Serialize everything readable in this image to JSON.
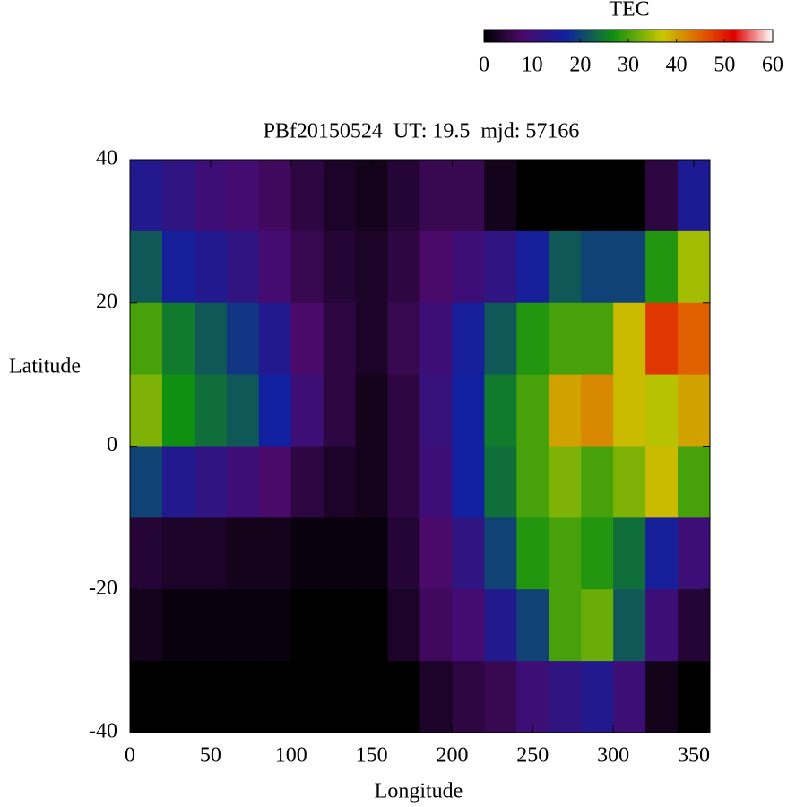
{
  "chart_data": {
    "type": "heatmap",
    "title": "PBf20150524  UT: 19.5  mjd: 57166",
    "x_label": "Longitude",
    "y_label": "Latitude",
    "colorbar_label": "TEC",
    "x": [
      10,
      30,
      50,
      70,
      90,
      110,
      130,
      150,
      170,
      190,
      210,
      230,
      250,
      270,
      290,
      310,
      330,
      350
    ],
    "y": [
      35,
      25,
      15,
      5,
      -5,
      -15,
      -25,
      -35
    ],
    "z": [
      [
        14,
        12,
        10,
        9,
        7,
        5,
        3,
        2,
        4,
        6,
        6,
        2,
        0,
        0,
        0,
        0,
        5,
        15
      ],
      [
        22,
        16,
        14,
        12,
        9,
        6,
        4,
        3,
        5,
        8,
        10,
        12,
        16,
        22,
        20,
        20,
        28,
        35
      ],
      [
        30,
        25,
        22,
        19,
        14,
        8,
        5,
        3,
        6,
        10,
        16,
        22,
        28,
        30,
        30,
        38,
        48,
        45
      ],
      [
        33,
        27,
        24,
        22,
        17,
        10,
        5,
        2,
        5,
        11,
        17,
        25,
        30,
        40,
        42,
        38,
        36,
        40
      ],
      [
        20,
        14,
        12,
        10,
        8,
        5,
        3,
        2,
        5,
        10,
        17,
        24,
        30,
        33,
        30,
        33,
        38,
        30
      ],
      [
        4,
        3,
        3,
        2,
        2,
        1,
        1,
        1,
        4,
        8,
        12,
        20,
        28,
        30,
        28,
        24,
        16,
        10
      ],
      [
        2,
        1,
        1,
        1,
        1,
        0,
        0,
        0,
        3,
        7,
        9,
        14,
        20,
        30,
        32,
        22,
        10,
        4
      ],
      [
        0,
        0,
        0,
        0,
        0,
        0,
        0,
        0,
        0,
        3,
        5,
        6,
        10,
        12,
        14,
        10,
        2,
        0
      ]
    ],
    "xlim": [
      0,
      360
    ],
    "xticks": [
      0,
      50,
      100,
      150,
      200,
      250,
      300,
      350
    ],
    "ylim": [
      -40,
      40
    ],
    "yticks": [
      -40,
      -20,
      0,
      20,
      40
    ],
    "clim": [
      0,
      60
    ],
    "colorbar_ticks": [
      0,
      10,
      20,
      30,
      40,
      50,
      60
    ],
    "colorscale": [
      [
        0,
        "#000000"
      ],
      [
        8,
        "#4a0a6a"
      ],
      [
        17,
        "#1020a0"
      ],
      [
        27,
        "#109010"
      ],
      [
        37,
        "#c8c800"
      ],
      [
        45,
        "#e06000"
      ],
      [
        52,
        "#e00000"
      ],
      [
        60,
        "#ffffff"
      ]
    ]
  }
}
